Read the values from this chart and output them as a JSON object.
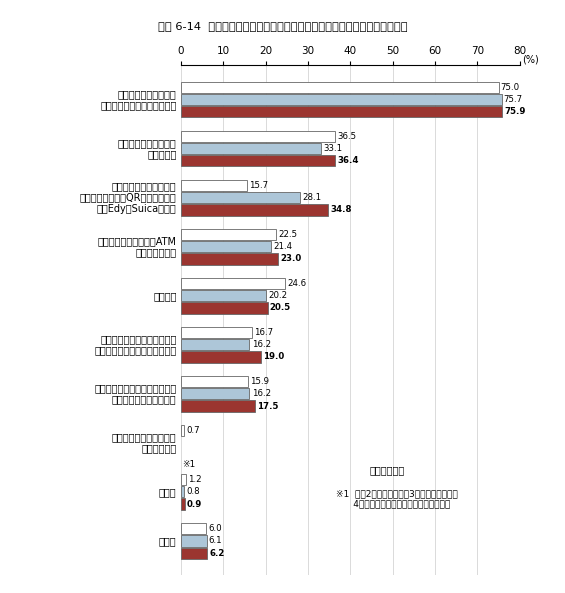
{
  "title": "図表 6-14  インターネットを使って商品を購入する際の決済手段（時系列）",
  "categories": [
    "クレジットカード払い\n（代金引換時の利用を除く）",
    "コンビニエンスストア\nでの支払い",
    "電子マネーによる支払い\n（〇〇ペイなどのQRコード決済、\n楽天Edy、Suicaなど）",
    "銀行・郵便局の窓口・ATM\nでの振込・振替",
    "代金引換",
    "インターネットバンキング・\nモバイルバンキングによる振込",
    "通信料金・プロバイダ利用料金\nへの上乗せによる支払い",
    "現金書留、為替、小切手\nによる支払い",
    "その他",
    "無回答"
  ],
  "values_r2": [
    75.0,
    36.5,
    15.7,
    22.5,
    24.6,
    16.7,
    15.9,
    0.7,
    1.2,
    6.0
  ],
  "values_r3": [
    75.7,
    33.1,
    28.1,
    21.4,
    20.2,
    16.2,
    16.2,
    null,
    0.8,
    6.1
  ],
  "values_r4": [
    75.9,
    36.4,
    34.8,
    23.0,
    20.5,
    19.0,
    17.5,
    null,
    0.9,
    6.2
  ],
  "labels_r2": [
    "75.0",
    "36.5",
    "15.7",
    "22.5",
    "24.6",
    "16.7",
    "15.9",
    "0.7",
    "1.2",
    "6.0"
  ],
  "labels_r3": [
    "75.7",
    "33.1",
    "28.1",
    "21.4",
    "20.2",
    "16.2",
    "16.2",
    "",
    "0.8",
    "6.1"
  ],
  "labels_r4": [
    "75.9",
    "36.4",
    "34.8",
    "23.0",
    "20.5",
    "19.0",
    "17.5",
    "",
    "0.9",
    "6.2"
  ],
  "color_r2": "#ffffff",
  "color_r3": "#adc6d8",
  "color_r4": "#9b3530",
  "edgecolor": "#666666",
  "bar_height": 0.25,
  "xlim": [
    0,
    80
  ],
  "xticks": [
    0,
    10,
    20,
    30,
    40,
    50,
    60,
    70,
    80
  ],
  "note1": "※1  令和2年調査と、令和3年調査および令和\n      4年調査の選択肢がそれぞれ一部異なる",
  "note2": "（複数回答）",
  "note3": "※1"
}
